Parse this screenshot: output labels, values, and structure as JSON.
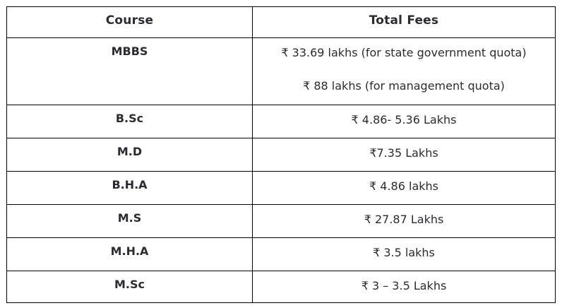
{
  "table": {
    "colors": {
      "border": "#000000",
      "text": "#2b2b33",
      "background": "#ffffff"
    },
    "headers": [
      {
        "label": "Course"
      },
      {
        "label": "Total Fees"
      }
    ],
    "rows": [
      {
        "course": "MBBS",
        "fees": [
          "₹ 33.69 lakhs (for state government quota)",
          "₹ 88 lakhs (for management quota)"
        ]
      },
      {
        "course": "B.Sc",
        "fees": [
          "₹ 4.86- 5.36 Lakhs"
        ]
      },
      {
        "course": "M.D",
        "fees": [
          "₹7.35 Lakhs"
        ]
      },
      {
        "course": "B.H.A",
        "fees": [
          "₹ 4.86 lakhs"
        ]
      },
      {
        "course": "M.S",
        "fees": [
          "₹ 27.87 Lakhs"
        ]
      },
      {
        "course": "M.H.A",
        "fees": [
          "₹ 3.5 lakhs"
        ]
      },
      {
        "course": "M.Sc",
        "fees": [
          "₹ 3 – 3.5 Lakhs"
        ]
      }
    ]
  }
}
